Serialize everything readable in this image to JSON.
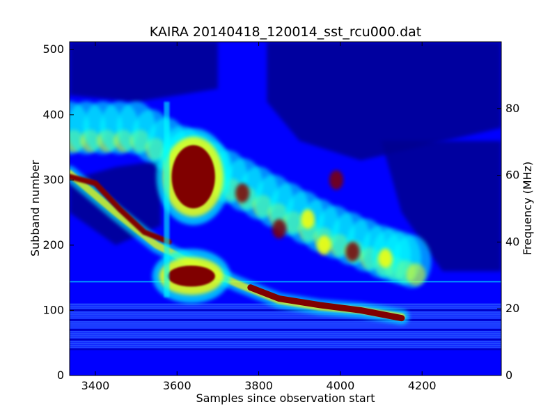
{
  "chart_data": {
    "type": "heatmap",
    "title": "KAIRA 20140418_120014_sst_rcu000.dat",
    "xlabel": "Samples since observation start",
    "ylabel": "Subband number",
    "ylabel_right": "Frequency (MHz)",
    "xlim": [
      3337,
      4394
    ],
    "ylim": [
      0,
      512
    ],
    "ylim_right": [
      0,
      100
    ],
    "x_ticks": [
      {
        "value": 3400,
        "label": "3400"
      },
      {
        "value": 3600,
        "label": "3600"
      },
      {
        "value": 3800,
        "label": "3800"
      },
      {
        "value": 4000,
        "label": "4000"
      },
      {
        "value": 4200,
        "label": "4200"
      }
    ],
    "y_ticks": [
      {
        "value": 0,
        "label": "0"
      },
      {
        "value": 100,
        "label": "100"
      },
      {
        "value": 200,
        "label": "200"
      },
      {
        "value": 300,
        "label": "300"
      },
      {
        "value": 400,
        "label": "400"
      },
      {
        "value": 500,
        "label": "500"
      }
    ],
    "y_ticks_right": [
      {
        "value": 0,
        "label": "0"
      },
      {
        "value": 20,
        "label": "20"
      },
      {
        "value": 40,
        "label": "40"
      },
      {
        "value": 60,
        "label": "60"
      },
      {
        "value": 80,
        "label": "80"
      }
    ],
    "colormap": "jet",
    "colors": {
      "background_low": "#0000ff",
      "deep_low": "#00008f",
      "mid": "#00ffff",
      "high": "#ffff00",
      "peak": "#800000"
    },
    "features": [
      {
        "name": "burst-lane-1",
        "points": [
          [
            3337,
            310
          ],
          [
            3450,
            250
          ],
          [
            3550,
            200
          ],
          [
            3650,
            168
          ],
          [
            3750,
            140
          ],
          [
            3850,
            115
          ],
          [
            3950,
            105
          ],
          [
            4050,
            100
          ],
          [
            4150,
            90
          ]
        ],
        "intensity": 0.9
      },
      {
        "name": "hot-region-upper",
        "x": [
          3580,
          3700
        ],
        "y": [
          250,
          360
        ],
        "intensity": 1.0
      },
      {
        "name": "hot-region-lower",
        "x": [
          3570,
          3700
        ],
        "y": [
          130,
          175
        ],
        "intensity": 1.0
      },
      {
        "name": "upper-burst-diffuse",
        "points": [
          [
            3337,
            380
          ],
          [
            3500,
            380
          ],
          [
            3650,
            330
          ],
          [
            3800,
            280
          ],
          [
            3950,
            230
          ],
          [
            4100,
            190
          ],
          [
            4200,
            170
          ]
        ],
        "intensity": 0.6
      },
      {
        "name": "rfi-band-lower",
        "y": [
          40,
          110
        ],
        "intensity": 0.5
      }
    ]
  }
}
